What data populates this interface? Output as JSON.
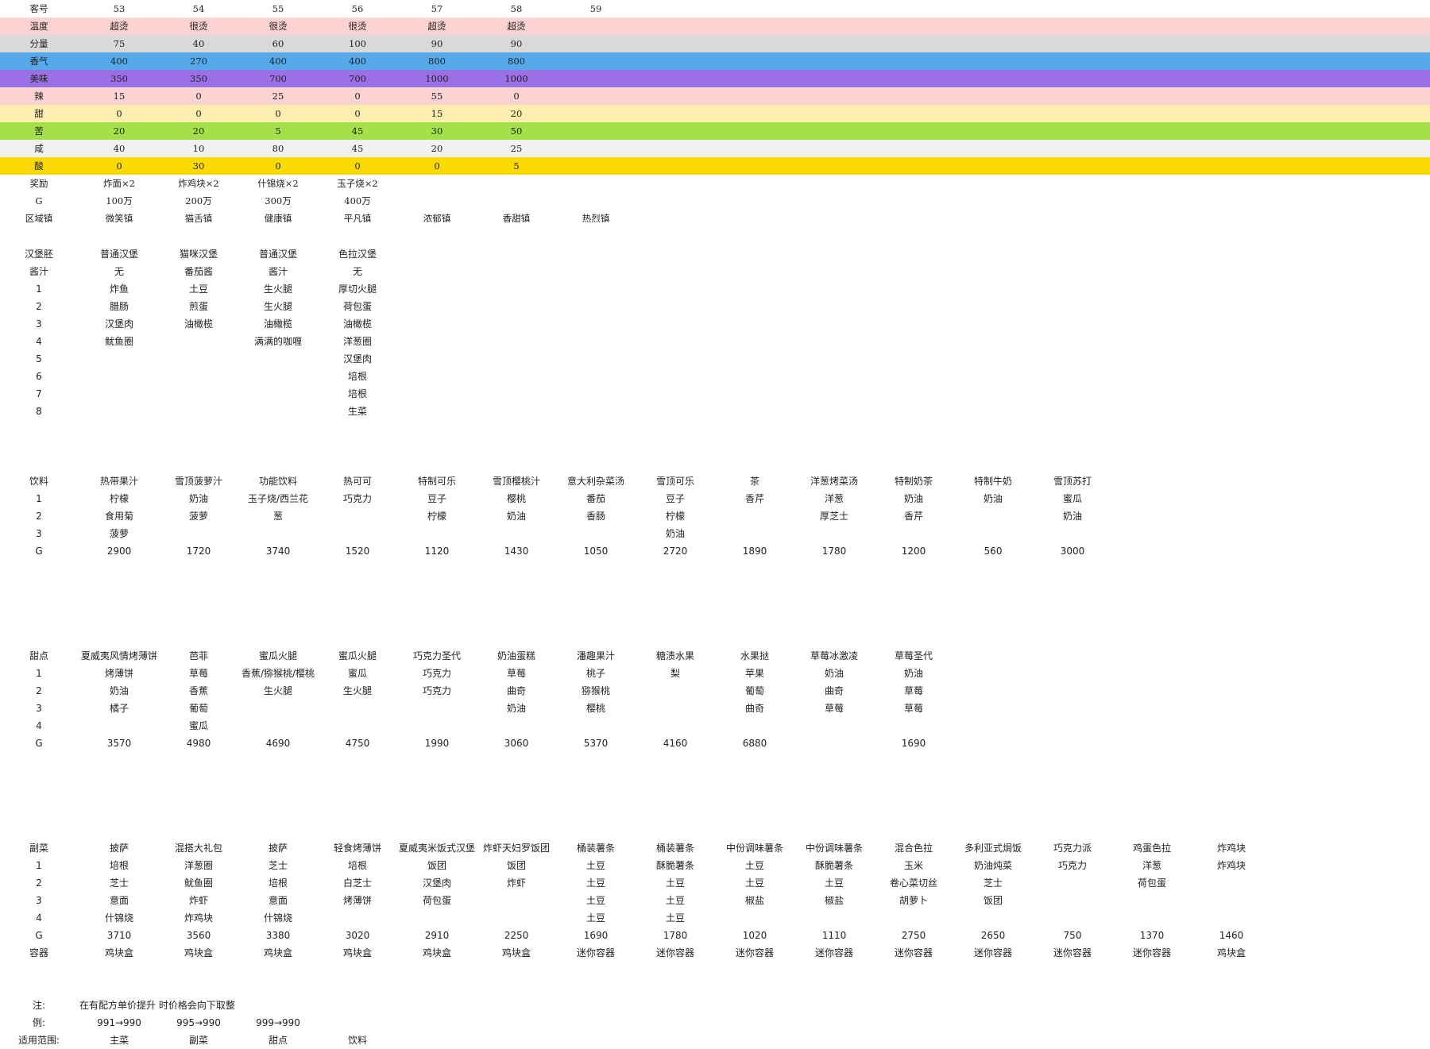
{
  "colors": {
    "温度": "#fcd3d2",
    "分量": "#d9d9db",
    "香气": "#56a9e8",
    "美味": "#9b6fe5",
    "辣": "#fcd3d2",
    "甜": "#fbeeaf",
    "苦": "#a3e04a",
    "咸": "#f1f1f2",
    "酸": "#fbd905"
  },
  "customers": {
    "rows": [
      {
        "label": "客号",
        "values": [
          "53",
          "54",
          "55",
          "56",
          "57",
          "58",
          "59"
        ],
        "serif": true
      },
      {
        "label": "温度",
        "values": [
          "超烫",
          "很烫",
          "很烫",
          "很烫",
          "超烫",
          "超烫"
        ],
        "serif": true
      },
      {
        "label": "分量",
        "values": [
          "75",
          "40",
          "60",
          "100",
          "90",
          "90"
        ],
        "serif": true
      },
      {
        "label": "香气",
        "values": [
          "400",
          "270",
          "400",
          "400",
          "800",
          "800"
        ],
        "serif": true
      },
      {
        "label": "美味",
        "values": [
          "350",
          "350",
          "700",
          "700",
          "1000",
          "1000"
        ],
        "serif": true
      },
      {
        "label": "辣",
        "values": [
          "15",
          "0",
          "25",
          "0",
          "55",
          "0"
        ],
        "serif": true
      },
      {
        "label": "甜",
        "values": [
          "0",
          "0",
          "0",
          "0",
          "15",
          "20"
        ],
        "serif": true
      },
      {
        "label": "苦",
        "values": [
          "20",
          "20",
          "5",
          "45",
          "30",
          "50"
        ],
        "serif": true
      },
      {
        "label": "咸",
        "values": [
          "40",
          "10",
          "80",
          "45",
          "20",
          "25"
        ],
        "serif": true
      },
      {
        "label": "酸",
        "values": [
          "0",
          "30",
          "0",
          "0",
          "0",
          "5"
        ],
        "serif": true
      },
      {
        "label": "奖励",
        "values": [
          "炸面×2",
          "炸鸡块×2",
          "什锦烧×2",
          "玉子烧×2"
        ],
        "serif": true
      },
      {
        "label": "G",
        "values": [
          "100万",
          "200万",
          "300万",
          "400万"
        ],
        "serif": true
      },
      {
        "label": "区域镇",
        "values": [
          "微笑镇",
          "猫舌镇",
          "健康镇",
          "平凡镇",
          "浓郁镇",
          "香甜镇",
          "热烈镇"
        ],
        "serif": true
      }
    ]
  },
  "burgers": {
    "rows": [
      {
        "label": "汉堡胚",
        "values": [
          "普通汉堡",
          "猫咪汉堡",
          "普通汉堡",
          "色拉汉堡"
        ]
      },
      {
        "label": "酱汁",
        "values": [
          "无",
          "番茄酱",
          "酱汁",
          "无"
        ]
      },
      {
        "label": "1",
        "values": [
          "炸鱼",
          "土豆",
          "生火腿",
          "厚切火腿"
        ]
      },
      {
        "label": "2",
        "values": [
          "腊肠",
          "煎蛋",
          "生火腿",
          "荷包蛋"
        ]
      },
      {
        "label": "3",
        "values": [
          "汉堡肉",
          "油橄榄",
          "油橄榄",
          "油橄榄"
        ]
      },
      {
        "label": "4",
        "values": [
          "鱿鱼圈",
          "",
          "满满的咖喱",
          "洋葱圈"
        ]
      },
      {
        "label": "5",
        "values": [
          "",
          "",
          "",
          "汉堡肉"
        ]
      },
      {
        "label": "6",
        "values": [
          "",
          "",
          "",
          "培根"
        ]
      },
      {
        "label": "7",
        "values": [
          "",
          "",
          "",
          "培根"
        ]
      },
      {
        "label": "8",
        "values": [
          "",
          "",
          "",
          "生菜"
        ]
      }
    ]
  },
  "drinks": {
    "rows": [
      {
        "label": "饮料",
        "values": [
          "热带果汁",
          "雪顶菠萝汁",
          "功能饮料",
          "热可可",
          "特制可乐",
          "雪顶樱桃汁",
          "意大利杂菜汤",
          "雪顶可乐",
          "茶",
          "洋葱烤菜汤",
          "特制奶茶",
          "特制牛奶",
          "雪顶苏打"
        ]
      },
      {
        "label": "1",
        "values": [
          "柠檬",
          "奶油",
          "玉子烧/西兰花",
          "巧克力",
          "豆子",
          "樱桃",
          "番茄",
          "豆子",
          "香芹",
          "洋葱",
          "奶油",
          "奶油",
          "蜜瓜"
        ]
      },
      {
        "label": "2",
        "values": [
          "食用菊",
          "菠萝",
          "葱",
          "",
          "柠檬",
          "奶油",
          "香肠",
          "柠檬",
          "",
          "厚芝士",
          "香芹",
          "",
          "奶油"
        ]
      },
      {
        "label": "3",
        "values": [
          "菠萝",
          "",
          "",
          "",
          "",
          "",
          "",
          "奶油",
          "",
          "",
          "",
          "",
          ""
        ]
      },
      {
        "label": "G",
        "values": [
          "2900",
          "1720",
          "3740",
          "1520",
          "1120",
          "1430",
          "1050",
          "2720",
          "1890",
          "1780",
          "1200",
          "560",
          "3000"
        ]
      }
    ]
  },
  "desserts": {
    "rows": [
      {
        "label": "甜点",
        "values": [
          "夏威夷风情烤薄饼",
          "芭菲",
          "蜜瓜火腿",
          "蜜瓜火腿",
          "巧克力圣代",
          "奶油蛋糕",
          "潘趣果汁",
          "糖渍水果",
          "水果挞",
          "草莓冰激凌",
          "草莓圣代"
        ]
      },
      {
        "label": "1",
        "values": [
          "烤薄饼",
          "草莓",
          "香蕉/猕猴桃/樱桃",
          "蜜瓜",
          "巧克力",
          "草莓",
          "桃子",
          "梨",
          "苹果",
          "奶油",
          "奶油"
        ]
      },
      {
        "label": "2",
        "values": [
          "奶油",
          "香蕉",
          "生火腿",
          "生火腿",
          "巧克力",
          "曲奇",
          "猕猴桃",
          "",
          "葡萄",
          "曲奇",
          "草莓"
        ]
      },
      {
        "label": "3",
        "values": [
          "橘子",
          "葡萄",
          "",
          "",
          "",
          "奶油",
          "樱桃",
          "",
          "曲奇",
          "草莓",
          "草莓"
        ]
      },
      {
        "label": "4",
        "values": [
          "",
          "蜜瓜",
          "",
          "",
          "",
          "",
          "",
          "",
          "",
          "",
          ""
        ]
      },
      {
        "label": "G",
        "values": [
          "3570",
          "4980",
          "4690",
          "4750",
          "1990",
          "3060",
          "5370",
          "4160",
          "6880",
          "",
          "1690"
        ]
      }
    ]
  },
  "sides": {
    "rows": [
      {
        "label": "副菜",
        "values": [
          "披萨",
          "混搭大礼包",
          "披萨",
          "轻食烤薄饼",
          "夏威夷米饭式汉堡",
          "炸虾天妇罗饭团",
          "桶装薯条",
          "桶装薯条",
          "中份调味薯条",
          "中份调味薯条",
          "混合色拉",
          "多利亚式焗饭",
          "巧克力派",
          "鸡蛋色拉",
          "炸鸡块"
        ]
      },
      {
        "label": "1",
        "values": [
          "培根",
          "洋葱圈",
          "芝士",
          "培根",
          "饭团",
          "饭团",
          "土豆",
          "酥脆薯条",
          "土豆",
          "酥脆薯条",
          "玉米",
          "奶油炖菜",
          "巧克力",
          "洋葱",
          "炸鸡块"
        ]
      },
      {
        "label": "2",
        "values": [
          "芝士",
          "鱿鱼圈",
          "培根",
          "白芝士",
          "汉堡肉",
          "炸虾",
          "土豆",
          "土豆",
          "土豆",
          "土豆",
          "卷心菜切丝",
          "芝士",
          "",
          "荷包蛋",
          ""
        ]
      },
      {
        "label": "3",
        "values": [
          "意面",
          "炸虾",
          "意面",
          "烤薄饼",
          "荷包蛋",
          "",
          "土豆",
          "土豆",
          "椒盐",
          "椒盐",
          "胡萝卜",
          "饭团",
          "",
          "",
          ""
        ]
      },
      {
        "label": "4",
        "values": [
          "什锦烧",
          "炸鸡块",
          "什锦烧",
          "",
          "",
          "",
          "土豆",
          "土豆",
          "",
          "",
          "",
          "",
          "",
          "",
          ""
        ]
      },
      {
        "label": "G",
        "values": [
          "3710",
          "3560",
          "3380",
          "3020",
          "2910",
          "2250",
          "1690",
          "1780",
          "1020",
          "1110",
          "2750",
          "2650",
          "750",
          "1370",
          "1460"
        ]
      },
      {
        "label": "容器",
        "values": [
          "鸡块盒",
          "鸡块盒",
          "鸡块盒",
          "鸡块盒",
          "鸡块盒",
          "鸡块盒",
          "迷你容器",
          "迷你容器",
          "迷你容器",
          "迷你容器",
          "迷你容器",
          "迷你容器",
          "迷你容器",
          "迷你容器",
          "鸡块盒"
        ]
      }
    ]
  },
  "notes": {
    "rows": [
      {
        "label": "注:",
        "values": [
          "在有配方单价提升 时价格会向下取整"
        ],
        "left": true
      },
      {
        "label": "例:",
        "values": [
          "991→990",
          "995→990",
          "999→990"
        ]
      },
      {
        "label": "适用范围:",
        "values": [
          "主菜",
          "副菜",
          "甜点",
          "饮料"
        ]
      }
    ]
  }
}
